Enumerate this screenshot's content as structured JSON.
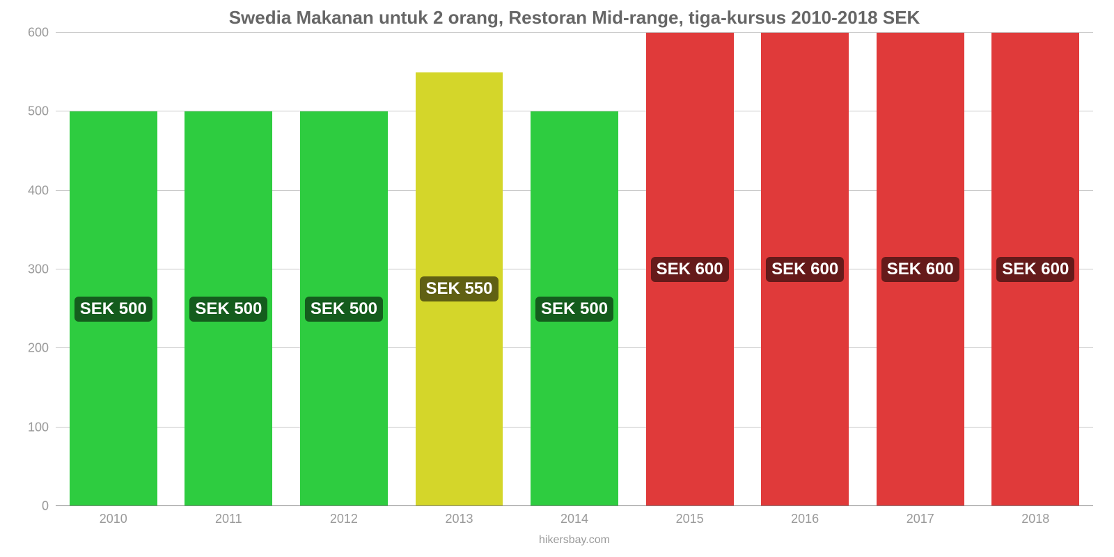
{
  "chart": {
    "type": "bar",
    "title": "Swedia Makanan untuk 2 orang, Restoran Mid-range, tiga-kursus 2010-2018 SEK",
    "title_color": "#666666",
    "title_fontsize": 26,
    "source": "hikersbay.com",
    "source_color": "#9a9a9a",
    "source_fontsize": 16,
    "background_color": "#ffffff",
    "grid_color": "#c8c8c8",
    "axis_text_color": "#9a9a9a",
    "axis_fontsize": 18,
    "ylim": [
      0,
      600
    ],
    "yticks": [
      0,
      100,
      200,
      300,
      400,
      500,
      600
    ],
    "bar_width": 0.76,
    "value_label_bg": "rgba(0,0,0,0.55)",
    "value_label_color": "#ffffff",
    "value_label_fontsize": 24,
    "categories": [
      "2010",
      "2011",
      "2012",
      "2013",
      "2014",
      "2015",
      "2016",
      "2017",
      "2018"
    ],
    "values": [
      500,
      500,
      500,
      550,
      500,
      600,
      600,
      600,
      600
    ],
    "value_labels": [
      "SEK 500",
      "SEK 500",
      "SEK 500",
      "SEK 550",
      "SEK 500",
      "SEK 600",
      "SEK 600",
      "SEK 600",
      "SEK 600"
    ],
    "bar_colors": [
      "#2ecc40",
      "#2ecc40",
      "#2ecc40",
      "#d4d62a",
      "#2ecc40",
      "#e03a3a",
      "#e03a3a",
      "#e03a3a",
      "#e03a3a"
    ]
  }
}
